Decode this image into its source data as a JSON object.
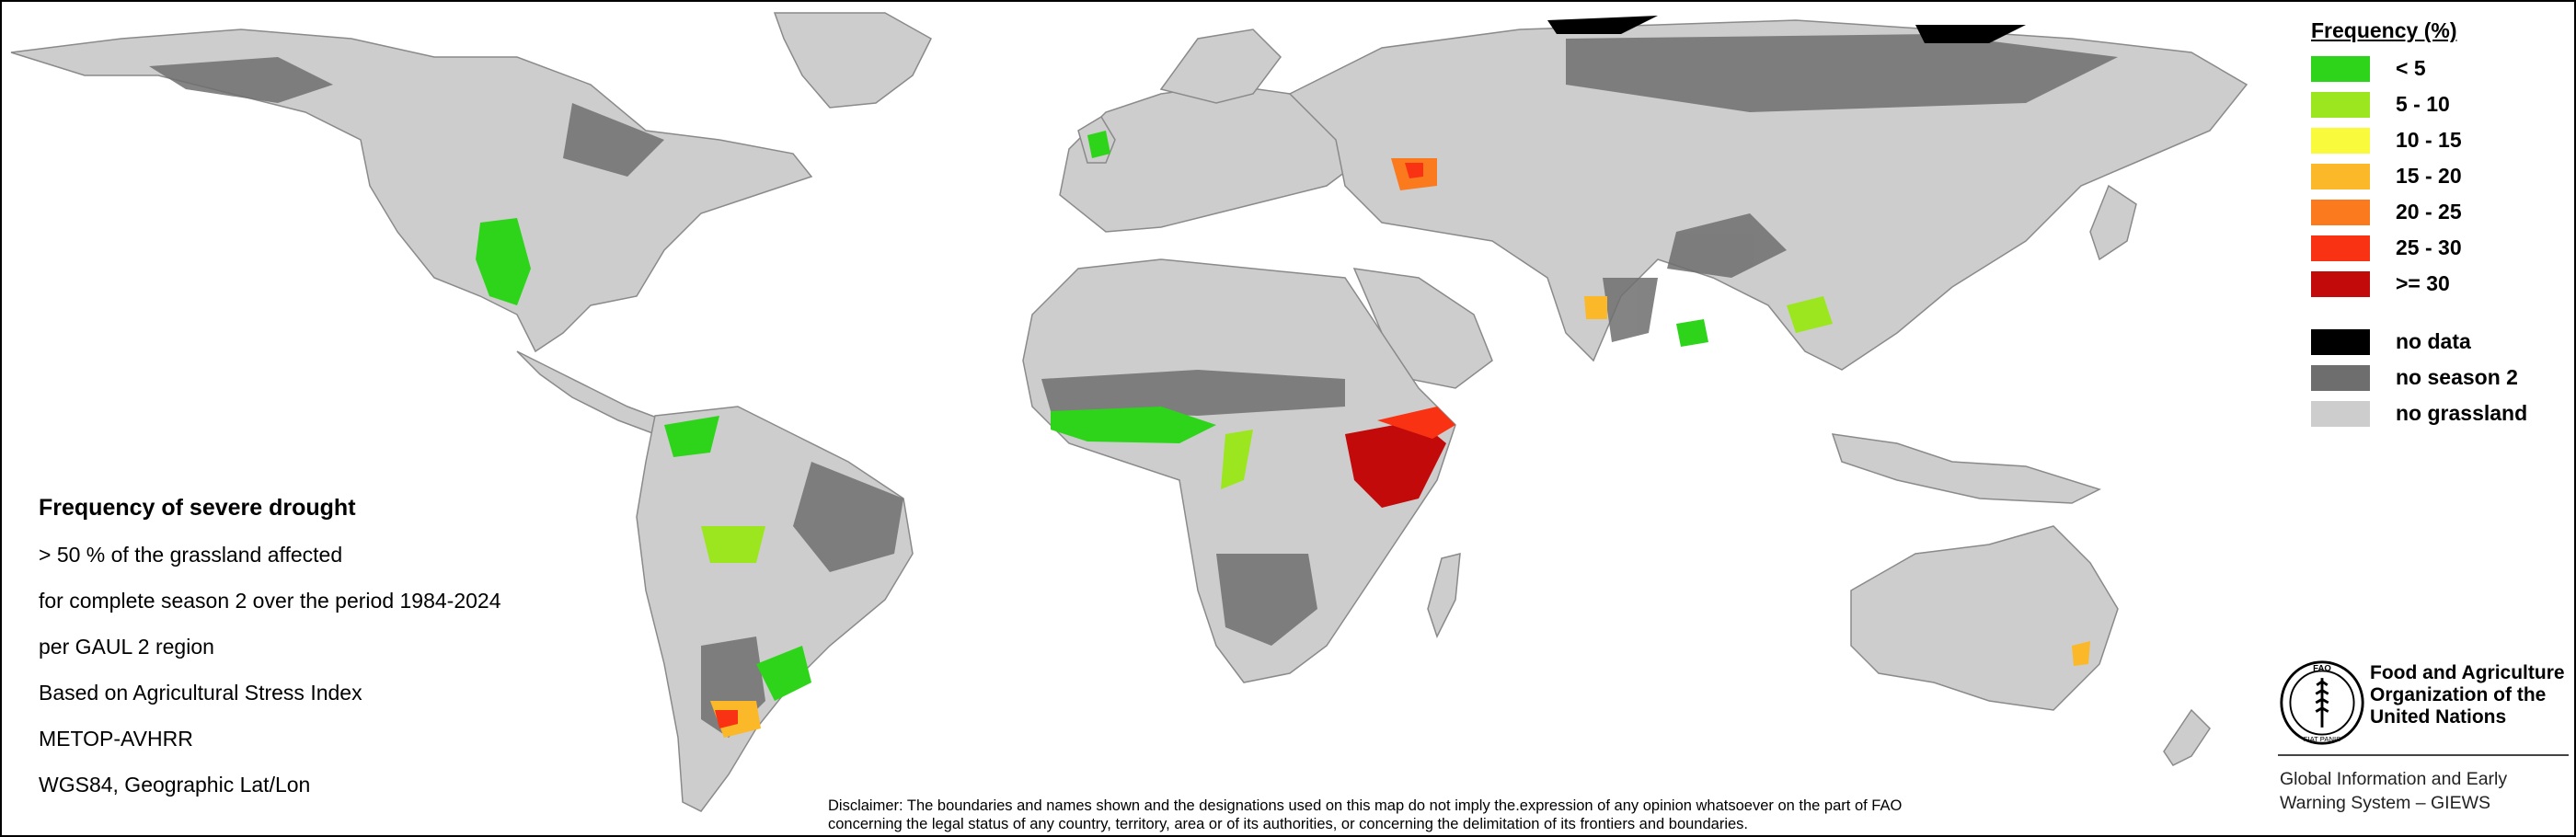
{
  "info": {
    "title": "Frequency of severe drought",
    "lines": [
      "> 50 % of the grassland affected",
      "for complete season 2 over the period 1984-2024",
      "per GAUL 2 region",
      "Based on Agricultural Stress Index",
      "METOP-AVHRR",
      "WGS84, Geographic Lat/Lon"
    ]
  },
  "legend": {
    "title": "Frequency (%)",
    "classes": [
      {
        "label": "< 5",
        "color": "#2ed41a"
      },
      {
        "label": "5 - 10",
        "color": "#9be61e"
      },
      {
        "label": "10 - 15",
        "color": "#fafa3c"
      },
      {
        "label": "15 - 20",
        "color": "#fbb828"
      },
      {
        "label": "20 - 25",
        "color": "#fb7a1e"
      },
      {
        "label": "25 - 30",
        "color": "#fa3214"
      },
      {
        "label": ">= 30",
        "color": "#c30a0a"
      }
    ],
    "other": [
      {
        "label": "no data",
        "color": "#000000"
      },
      {
        "label": "no season 2",
        "color": "#6e6e6e"
      },
      {
        "label": "no grassland",
        "color": "#cdcdcd"
      }
    ]
  },
  "disclaimer": {
    "line1": "Disclaimer: The boundaries and names shown and the designations used on this map do not imply the.expression of any opinion whatsoever on the part of FAO",
    "line2": "concerning the legal status of any country, territory, area or of its authorities, or concerning the delimitation of its frontiers and boundaries."
  },
  "organization": {
    "name_line1": "Food and Agriculture",
    "name_line2": "Organization of the",
    "name_line3": "United Nations",
    "logo_text": "FAO",
    "logo_motto": "FIAT PANIS",
    "system_line1": "Global Information and Early",
    "system_line2": "Warning System – GIEWS"
  },
  "map_colors": {
    "land": "#cdcdcd",
    "no_season": "#6e6e6e",
    "no_data": "#000000",
    "border": "#8a8a8a"
  }
}
